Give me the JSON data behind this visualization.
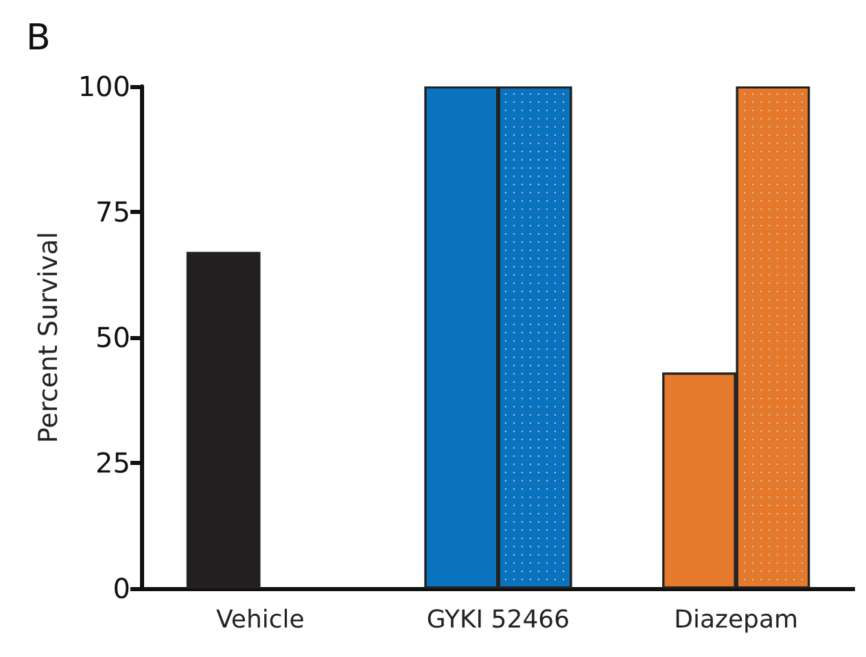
{
  "chart_data": {
    "type": "bar",
    "categories": [
      "Vehicle",
      "GYKI 52466",
      "Diazepam"
    ],
    "series": [
      {
        "colors": [
          "#231f20",
          "#0a73c0",
          "#e5792c"
        ],
        "values": [
          67,
          100,
          43
        ]
      },
      {
        "colors": [
          "#0a73c0",
          "#0a73c0",
          "#e5792c"
        ],
        "values": [
          null,
          100,
          100
        ]
      }
    ],
    "ylabel": "Percent Survival",
    "ylim": [
      0,
      100
    ],
    "yticks": [
      0,
      25,
      50,
      75,
      100
    ],
    "grid": false,
    "annotations": [
      "B"
    ]
  }
}
